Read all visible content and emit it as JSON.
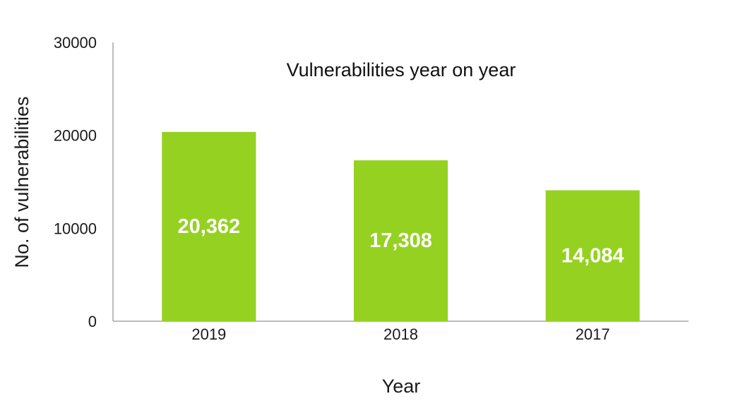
{
  "chart_data": {
    "type": "bar",
    "title": "Vulnerabilities year on year",
    "xlabel": "Year",
    "ylabel": "No. of vulnerabilities",
    "categories": [
      "2019",
      "2018",
      "2017"
    ],
    "values": [
      20362,
      17308,
      14084
    ],
    "data_labels": [
      "20,362",
      "17,308",
      "14,084"
    ],
    "ylim": [
      0,
      30000
    ],
    "yticks": [
      "0",
      "10000",
      "20000",
      "30000"
    ],
    "bar_color": "#95d121",
    "axis_color": "#a6a6a6",
    "grid": false,
    "legend": "none"
  }
}
